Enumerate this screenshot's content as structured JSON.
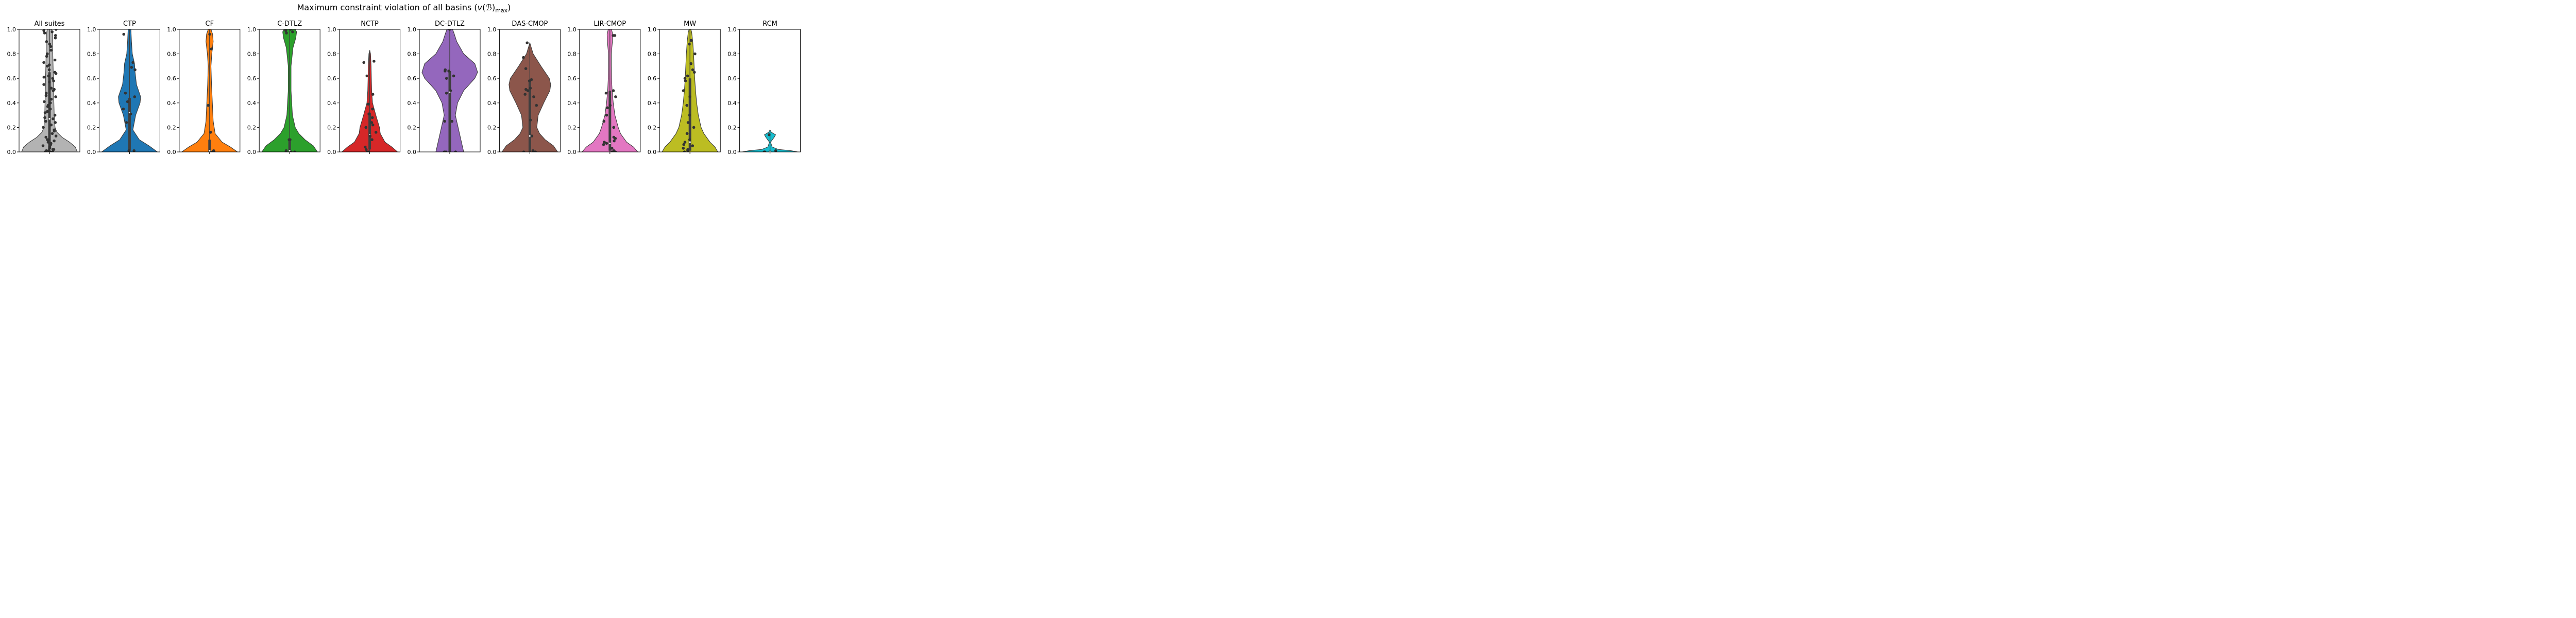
{
  "chart_data": {
    "type": "violin",
    "title": "Maximum constraint violation of all basins (v(ℬ)max)",
    "title_parts": {
      "prefix": "Maximum constraint violation of all basins (",
      "symbol": "v",
      "basin": "(ℬ)",
      "subscript": "max",
      "suffix": ")"
    },
    "ylim": [
      0,
      1
    ],
    "yticks": [
      "0.0",
      "0.2",
      "0.4",
      "0.6",
      "0.8",
      "1.0"
    ],
    "grid": false,
    "panels": [
      {
        "title": "All suites",
        "color": "#b3b3b3",
        "density": [
          [
            0.0,
            1.0
          ],
          [
            0.04,
            0.93
          ],
          [
            0.08,
            0.72
          ],
          [
            0.12,
            0.45
          ],
          [
            0.16,
            0.27
          ],
          [
            0.2,
            0.2
          ],
          [
            0.3,
            0.17
          ],
          [
            0.4,
            0.16
          ],
          [
            0.5,
            0.15
          ],
          [
            0.6,
            0.14
          ],
          [
            0.7,
            0.13
          ],
          [
            0.8,
            0.12
          ],
          [
            0.9,
            0.12
          ],
          [
            0.96,
            0.11
          ],
          [
            1.0,
            0.08
          ]
        ],
        "box": {
          "q1": 0.03,
          "q3": 0.65,
          "median": 0.27
        },
        "points": [
          0.0,
          0.0,
          0.0,
          0.01,
          0.01,
          0.02,
          0.02,
          0.03,
          0.03,
          0.04,
          0.05,
          0.06,
          0.07,
          0.08,
          0.09,
          0.1,
          0.1,
          0.12,
          0.13,
          0.15,
          0.17,
          0.18,
          0.2,
          0.22,
          0.24,
          0.25,
          0.27,
          0.28,
          0.3,
          0.32,
          0.33,
          0.35,
          0.37,
          0.38,
          0.4,
          0.41,
          0.43,
          0.45,
          0.46,
          0.48,
          0.5,
          0.51,
          0.52,
          0.55,
          0.57,
          0.58,
          0.6,
          0.61,
          0.62,
          0.64,
          0.65,
          0.67,
          0.7,
          0.71,
          0.73,
          0.75,
          0.78,
          0.8,
          0.83,
          0.86,
          0.88,
          0.9,
          0.93,
          0.95,
          0.97,
          0.98,
          0.99,
          1.0
        ]
      },
      {
        "title": "CTP",
        "color": "#1f77b4",
        "density": [
          [
            0.0,
            1.0
          ],
          [
            0.05,
            0.7
          ],
          [
            0.1,
            0.35
          ],
          [
            0.18,
            0.12
          ],
          [
            0.3,
            0.22
          ],
          [
            0.4,
            0.38
          ],
          [
            0.45,
            0.4
          ],
          [
            0.55,
            0.25
          ],
          [
            0.65,
            0.2
          ],
          [
            0.72,
            0.18
          ],
          [
            0.8,
            0.1
          ],
          [
            0.9,
            0.07
          ],
          [
            1.0,
            0.05
          ]
        ],
        "box": {
          "q1": 0.01,
          "q3": 0.44,
          "median": 0.32
        },
        "points": [
          0.01,
          0.01,
          0.24,
          0.31,
          0.35,
          0.41,
          0.45,
          0.48,
          0.67,
          0.69,
          0.73,
          0.96
        ]
      },
      {
        "title": "CF",
        "color": "#ff7f0e",
        "density": [
          [
            0.0,
            1.0
          ],
          [
            0.04,
            0.75
          ],
          [
            0.08,
            0.45
          ],
          [
            0.15,
            0.2
          ],
          [
            0.25,
            0.13
          ],
          [
            0.4,
            0.1
          ],
          [
            0.55,
            0.07
          ],
          [
            0.7,
            0.05
          ],
          [
            0.8,
            0.08
          ],
          [
            0.9,
            0.13
          ],
          [
            0.96,
            0.11
          ],
          [
            1.0,
            0.05
          ]
        ],
        "box": {
          "q1": 0.0,
          "q3": 0.1,
          "median": 0.01
        },
        "points": [
          0.0,
          0.0,
          0.0,
          0.01,
          0.16,
          0.38,
          0.84,
          0.96
        ]
      },
      {
        "title": "C-DTLZ",
        "color": "#2ca02c",
        "density": [
          [
            0.0,
            1.0
          ],
          [
            0.05,
            0.85
          ],
          [
            0.1,
            0.55
          ],
          [
            0.15,
            0.33
          ],
          [
            0.2,
            0.2
          ],
          [
            0.3,
            0.1
          ],
          [
            0.5,
            0.05
          ],
          [
            0.7,
            0.05
          ],
          [
            0.85,
            0.12
          ],
          [
            0.93,
            0.22
          ],
          [
            0.98,
            0.25
          ],
          [
            1.0,
            0.2
          ]
        ],
        "box": {
          "q1": 0.0,
          "q3": 0.1,
          "median": 0.01
        },
        "points": [
          0.0,
          0.0,
          0.0,
          0.01,
          0.1,
          0.1,
          0.97,
          0.98,
          0.99,
          1.0
        ]
      },
      {
        "title": "NCTP",
        "color": "#d62728",
        "density": [
          [
            0.0,
            1.0
          ],
          [
            0.04,
            0.8
          ],
          [
            0.08,
            0.55
          ],
          [
            0.15,
            0.38
          ],
          [
            0.2,
            0.35
          ],
          [
            0.3,
            0.22
          ],
          [
            0.4,
            0.1
          ],
          [
            0.5,
            0.07
          ],
          [
            0.6,
            0.06
          ],
          [
            0.7,
            0.05
          ],
          [
            0.8,
            0.03
          ],
          [
            0.83,
            0.0
          ]
        ],
        "box": {
          "q1": 0.02,
          "q3": 0.32,
          "median": 0.14
        },
        "points": [
          0.0,
          0.0,
          0.02,
          0.04,
          0.1,
          0.13,
          0.16,
          0.2,
          0.22,
          0.24,
          0.28,
          0.31,
          0.35,
          0.39,
          0.47,
          0.62,
          0.73,
          0.74
        ]
      },
      {
        "title": "DC-DTLZ",
        "color": "#9467bd",
        "density": [
          [
            0.0,
            0.5
          ],
          [
            0.05,
            0.45
          ],
          [
            0.1,
            0.4
          ],
          [
            0.2,
            0.3
          ],
          [
            0.3,
            0.2
          ],
          [
            0.4,
            0.28
          ],
          [
            0.5,
            0.5
          ],
          [
            0.6,
            0.9
          ],
          [
            0.65,
            1.0
          ],
          [
            0.72,
            0.9
          ],
          [
            0.8,
            0.5
          ],
          [
            0.9,
            0.25
          ],
          [
            0.97,
            0.15
          ],
          [
            1.0,
            0.1
          ]
        ],
        "box": {
          "q1": 0.0,
          "q3": 0.66,
          "median": 0.49
        },
        "points": [
          0.0,
          0.0,
          0.0,
          0.25,
          0.25,
          0.48,
          0.5,
          0.6,
          0.62,
          0.66,
          0.66,
          0.67,
          1.0
        ]
      },
      {
        "title": "DAS-CMOP",
        "color": "#8c564b",
        "density": [
          [
            0.0,
            1.0
          ],
          [
            0.05,
            0.85
          ],
          [
            0.1,
            0.55
          ],
          [
            0.15,
            0.35
          ],
          [
            0.2,
            0.25
          ],
          [
            0.3,
            0.3
          ],
          [
            0.4,
            0.5
          ],
          [
            0.5,
            0.72
          ],
          [
            0.55,
            0.75
          ],
          [
            0.6,
            0.7
          ],
          [
            0.7,
            0.4
          ],
          [
            0.8,
            0.12
          ],
          [
            0.89,
            0.0
          ]
        ],
        "box": {
          "q1": 0.0,
          "q3": 0.58,
          "median": 0.13
        },
        "points": [
          0.0,
          0.0,
          0.01,
          0.13,
          0.26,
          0.38,
          0.45,
          0.47,
          0.5,
          0.51,
          0.52,
          0.58,
          0.59,
          0.68,
          0.77,
          0.89
        ]
      },
      {
        "title": "LIR-CMOP",
        "color": "#e377c2",
        "density": [
          [
            0.0,
            1.0
          ],
          [
            0.04,
            0.85
          ],
          [
            0.08,
            0.6
          ],
          [
            0.15,
            0.38
          ],
          [
            0.2,
            0.3
          ],
          [
            0.3,
            0.18
          ],
          [
            0.4,
            0.12
          ],
          [
            0.5,
            0.08
          ],
          [
            0.6,
            0.06
          ],
          [
            0.7,
            0.05
          ],
          [
            0.8,
            0.05
          ],
          [
            0.9,
            0.09
          ],
          [
            0.96,
            0.1
          ],
          [
            1.0,
            0.06
          ]
        ],
        "box": {
          "q1": 0.01,
          "q3": 0.5,
          "median": 0.07
        },
        "points": [
          0.0,
          0.0,
          0.01,
          0.03,
          0.06,
          0.07,
          0.08,
          0.09,
          0.11,
          0.12,
          0.2,
          0.25,
          0.3,
          0.36,
          0.38,
          0.45,
          0.48,
          0.5,
          0.95,
          0.95
        ]
      },
      {
        "title": "MW",
        "color": "#bcbd22",
        "density": [
          [
            0.0,
            1.0
          ],
          [
            0.04,
            0.9
          ],
          [
            0.08,
            0.72
          ],
          [
            0.15,
            0.5
          ],
          [
            0.2,
            0.4
          ],
          [
            0.3,
            0.3
          ],
          [
            0.4,
            0.24
          ],
          [
            0.5,
            0.2
          ],
          [
            0.6,
            0.17
          ],
          [
            0.7,
            0.15
          ],
          [
            0.8,
            0.13
          ],
          [
            0.9,
            0.1
          ],
          [
            0.98,
            0.06
          ],
          [
            1.0,
            0.03
          ]
        ],
        "box": {
          "q1": 0.01,
          "q3": 0.6,
          "median": 0.08
        },
        "points": [
          0.0,
          0.01,
          0.02,
          0.03,
          0.05,
          0.06,
          0.08,
          0.1,
          0.15,
          0.2,
          0.24,
          0.3,
          0.38,
          0.45,
          0.5,
          0.58,
          0.6,
          0.62,
          0.65,
          0.67,
          0.72,
          0.8,
          0.88,
          0.91
        ]
      },
      {
        "title": "RCM",
        "color": "#17becf",
        "density": [
          [
            0.0,
            1.0
          ],
          [
            0.01,
            0.75
          ],
          [
            0.02,
            0.3
          ],
          [
            0.04,
            0.08
          ],
          [
            0.08,
            0.02
          ],
          [
            0.12,
            0.15
          ],
          [
            0.14,
            0.2
          ],
          [
            0.16,
            0.05
          ],
          [
            0.18,
            0.0
          ]
        ],
        "box": {
          "q1": 0.0,
          "q3": 0.01,
          "median": 0.0
        },
        "points": [
          0.0,
          0.0,
          0.01,
          0.14
        ]
      }
    ]
  }
}
